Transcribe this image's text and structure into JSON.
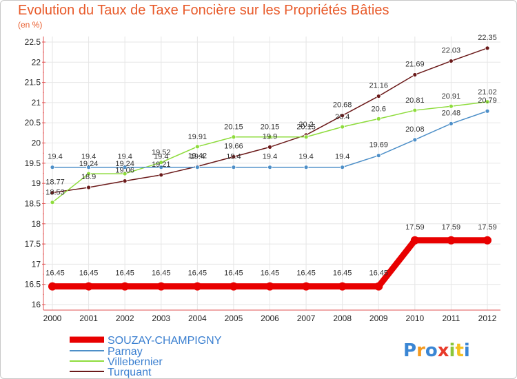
{
  "chart_data": {
    "type": "line",
    "title": "Evolution du Taux de Taxe Foncière sur les Propriétés Bâties",
    "unit_label": "(en %)",
    "x": [
      "2000",
      "2001",
      "2002",
      "2003",
      "2004",
      "2005",
      "2006",
      "2007",
      "2008",
      "2009",
      "2010",
      "2011",
      "2012"
    ],
    "ylim": [
      16,
      22.5
    ],
    "yticks": [
      "16",
      "16.5",
      "17",
      "17.5",
      "18",
      "18.5",
      "19",
      "19.5",
      "20",
      "20.5",
      "21",
      "21.5",
      "22",
      "22.5"
    ],
    "series": [
      {
        "name": "SOUZAY-CHAMPIGNY",
        "color": "#e80000",
        "values": [
          16.45,
          16.45,
          16.45,
          16.45,
          16.45,
          16.45,
          16.45,
          16.45,
          16.45,
          16.45,
          17.59,
          17.59,
          17.59
        ]
      },
      {
        "name": "Parnay",
        "color": "#4d8fc8",
        "values": [
          19.4,
          19.4,
          19.4,
          19.4,
          19.4,
          19.4,
          19.4,
          19.4,
          19.4,
          19.69,
          20.08,
          20.48,
          20.79
        ]
      },
      {
        "name": "Villebernier",
        "color": "#8edc3c",
        "values": [
          18.53,
          19.24,
          19.24,
          19.52,
          19.91,
          20.15,
          20.15,
          20.15,
          20.4,
          20.6,
          20.81,
          20.91,
          21.02
        ]
      },
      {
        "name": "Turquant",
        "color": "#6b1a1a",
        "values": [
          18.77,
          18.9,
          19.06,
          19.21,
          19.42,
          19.66,
          19.9,
          20.2,
          20.68,
          21.16,
          21.69,
          22.03,
          22.35
        ]
      }
    ],
    "grid": true,
    "legend": "bottom"
  },
  "logo": {
    "text": "Proxiti"
  }
}
